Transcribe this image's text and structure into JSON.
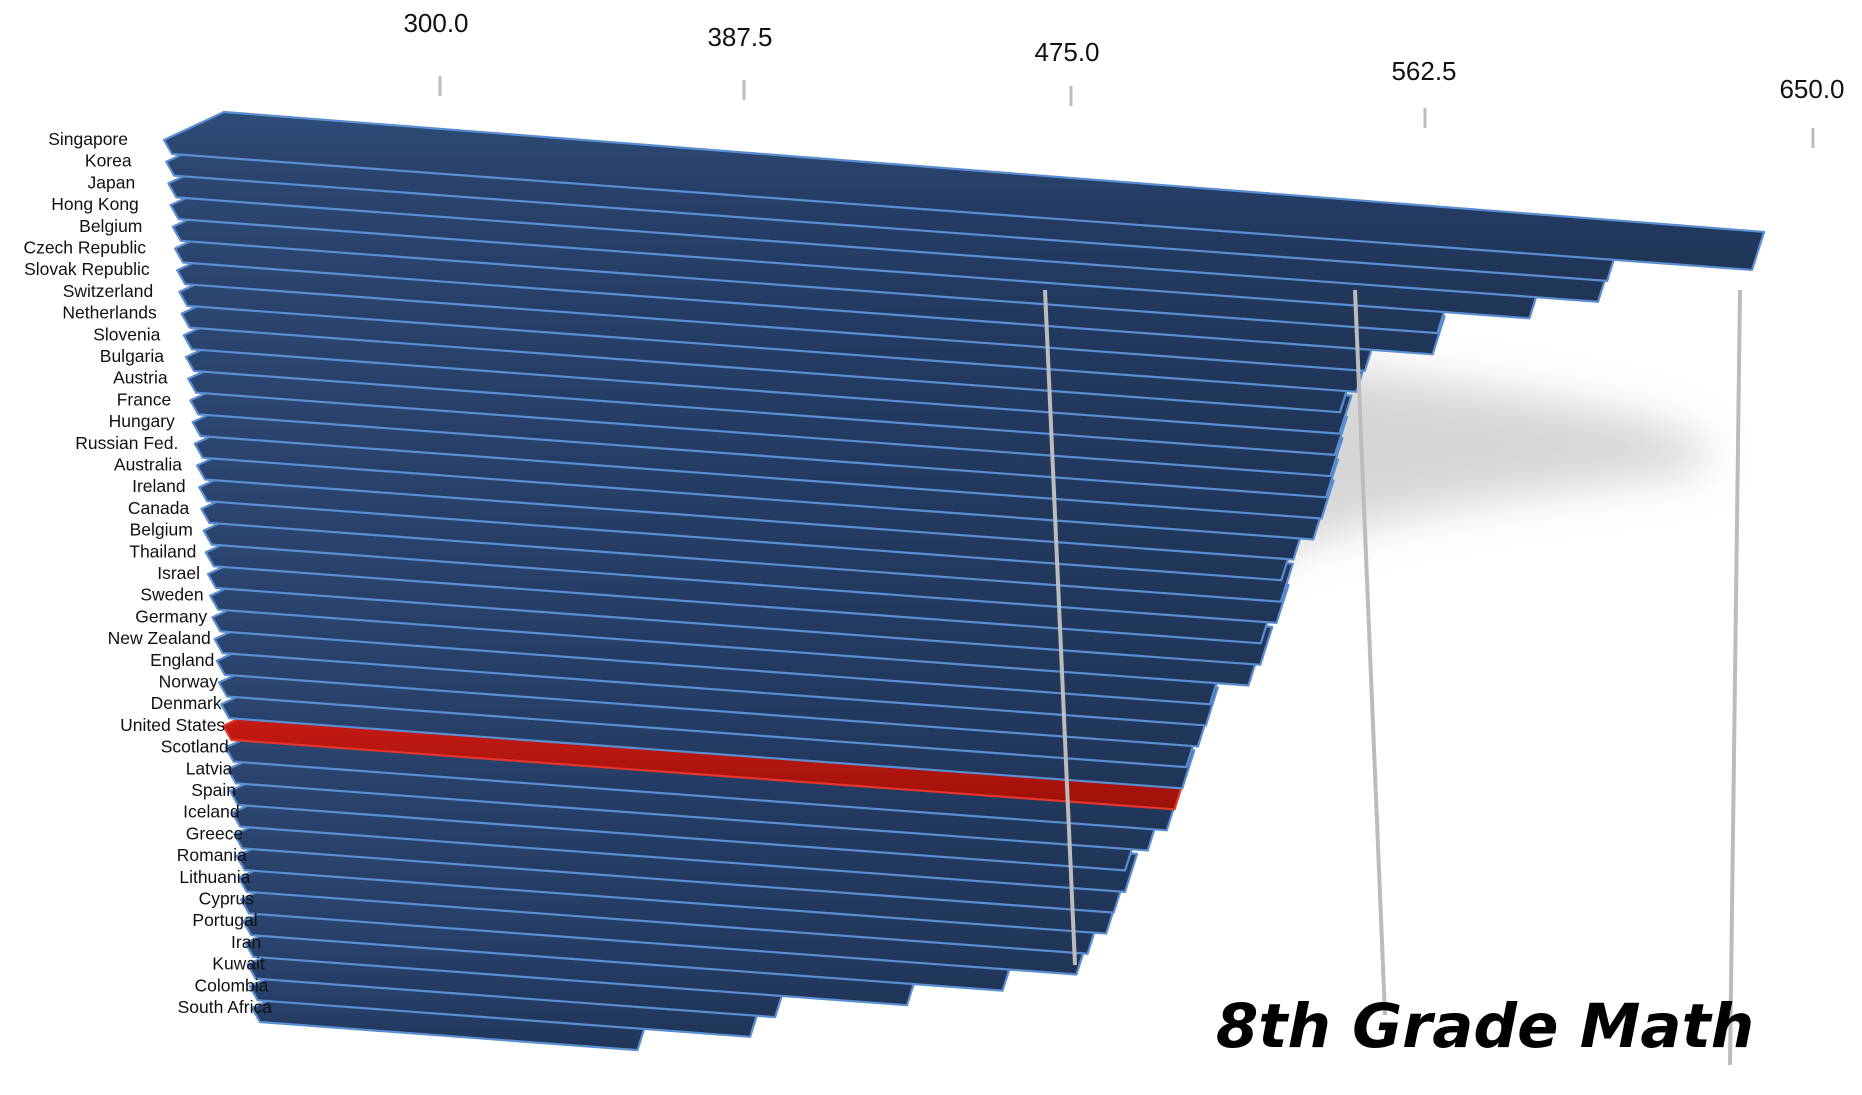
{
  "chart_data": {
    "type": "bar",
    "orientation": "horizontal",
    "title": "8th Grade Math",
    "highlight_category": "United States",
    "categories": [
      "Singapore",
      "Korea",
      "Japan",
      "Hong Kong",
      "Belgium",
      "Czech Republic",
      "Slovak Republic",
      "Switzerland",
      "Netherlands",
      "Slovenia",
      "Bulgaria",
      "Austria",
      "France",
      "Hungary",
      "Russian Fed.",
      "Australia",
      "Ireland",
      "Canada",
      "Belgium",
      "Thailand",
      "Israel",
      "Sweden",
      "Germany",
      "New Zealand",
      "England",
      "Norway",
      "Denmark",
      "United States",
      "Scotland",
      "Latvia",
      "Spain",
      "Iceland",
      "Greece",
      "Romania",
      "Lithuania",
      "Cyprus",
      "Portugal",
      "Iran",
      "Kuwait",
      "Colombia",
      "South Africa"
    ],
    "values": [
      643,
      607,
      605,
      588,
      565,
      564,
      547,
      545,
      541,
      541,
      540,
      539,
      538,
      537,
      535,
      530,
      527,
      527,
      526,
      522,
      522,
      519,
      509,
      508,
      506,
      503,
      502,
      500,
      498,
      493,
      487,
      487,
      484,
      482,
      477,
      474,
      454,
      428,
      392,
      385,
      354
    ],
    "xlim": [
      300.0,
      650.0
    ],
    "x_ticks": [
      "300.0",
      "387.5",
      "475.0",
      "562.5",
      "650.0"
    ],
    "colors": {
      "bar": "#2c4670",
      "bar_edge": "#5b8ed0",
      "highlight": "#b0160f",
      "gridline": "#bcbcbc",
      "shadow": "#b5b5b5"
    },
    "grid": true,
    "legend": "none"
  }
}
